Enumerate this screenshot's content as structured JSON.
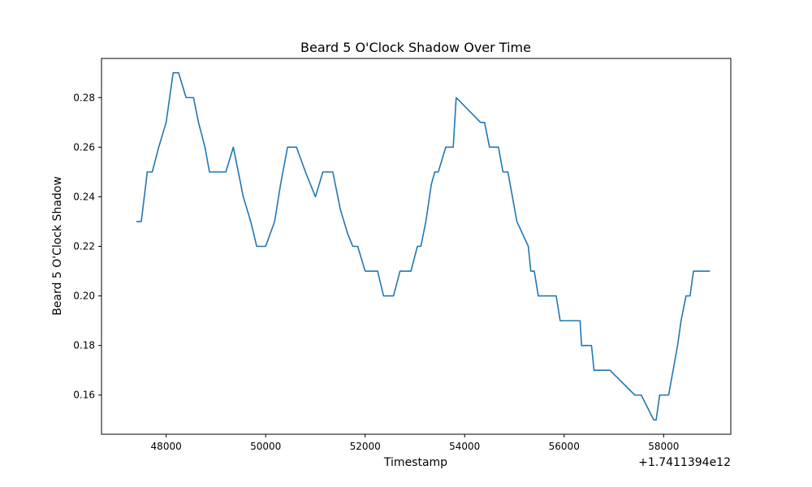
{
  "chart_data": {
    "type": "line",
    "title": "Beard 5 O'Clock Shadow Over Time",
    "xlabel": "Timestamp",
    "ylabel": "Beard 5 O'Clock Shadow",
    "x_offset_label": "+1.7411394e12",
    "xlim": [
      46700,
      59350
    ],
    "ylim": [
      0.1442,
      0.2958
    ],
    "x_ticks": [
      48000,
      50000,
      52000,
      54000,
      56000,
      58000
    ],
    "x_tick_labels": [
      "48000",
      "50000",
      "52000",
      "54000",
      "56000",
      "58000"
    ],
    "y_ticks": [
      0.16,
      0.18,
      0.2,
      0.22,
      0.24,
      0.26,
      0.28
    ],
    "y_tick_labels": [
      "0.16",
      "0.18",
      "0.20",
      "0.22",
      "0.24",
      "0.26",
      "0.28"
    ],
    "grid": false,
    "series": [
      {
        "color": "#1f77b4",
        "x": [
          47400,
          47500,
          47620,
          47720,
          47850,
          48000,
          48140,
          48250,
          48400,
          48550,
          48650,
          48780,
          48870,
          49000,
          49200,
          49350,
          49550,
          49700,
          49820,
          50000,
          50180,
          50300,
          50440,
          50620,
          50800,
          51000,
          51150,
          51350,
          51500,
          51650,
          51750,
          51850,
          52000,
          52250,
          52370,
          52570,
          52700,
          52920,
          53050,
          53120,
          53220,
          53330,
          53400,
          53470,
          53620,
          53770,
          53830,
          54320,
          54400,
          54500,
          54680,
          54770,
          54870,
          55050,
          55280,
          55330,
          55400,
          55480,
          55840,
          55920,
          56320,
          56350,
          56550,
          56600,
          56920,
          57420,
          57550,
          57800,
          57850,
          57920,
          58100,
          58280,
          58350,
          58450,
          58530,
          58600,
          58930
        ],
        "y": [
          0.23,
          0.23,
          0.25,
          0.25,
          0.26,
          0.27,
          0.29,
          0.29,
          0.28,
          0.28,
          0.27,
          0.26,
          0.25,
          0.25,
          0.25,
          0.26,
          0.24,
          0.23,
          0.22,
          0.22,
          0.23,
          0.245,
          0.26,
          0.26,
          0.25,
          0.24,
          0.25,
          0.25,
          0.235,
          0.225,
          0.22,
          0.22,
          0.21,
          0.21,
          0.2,
          0.2,
          0.21,
          0.21,
          0.22,
          0.22,
          0.23,
          0.245,
          0.25,
          0.25,
          0.26,
          0.26,
          0.28,
          0.27,
          0.27,
          0.26,
          0.26,
          0.25,
          0.25,
          0.23,
          0.22,
          0.21,
          0.21,
          0.2,
          0.2,
          0.19,
          0.19,
          0.18,
          0.18,
          0.17,
          0.17,
          0.16,
          0.16,
          0.15,
          0.15,
          0.16,
          0.16,
          0.18,
          0.19,
          0.2,
          0.2,
          0.21,
          0.21
        ]
      }
    ]
  }
}
